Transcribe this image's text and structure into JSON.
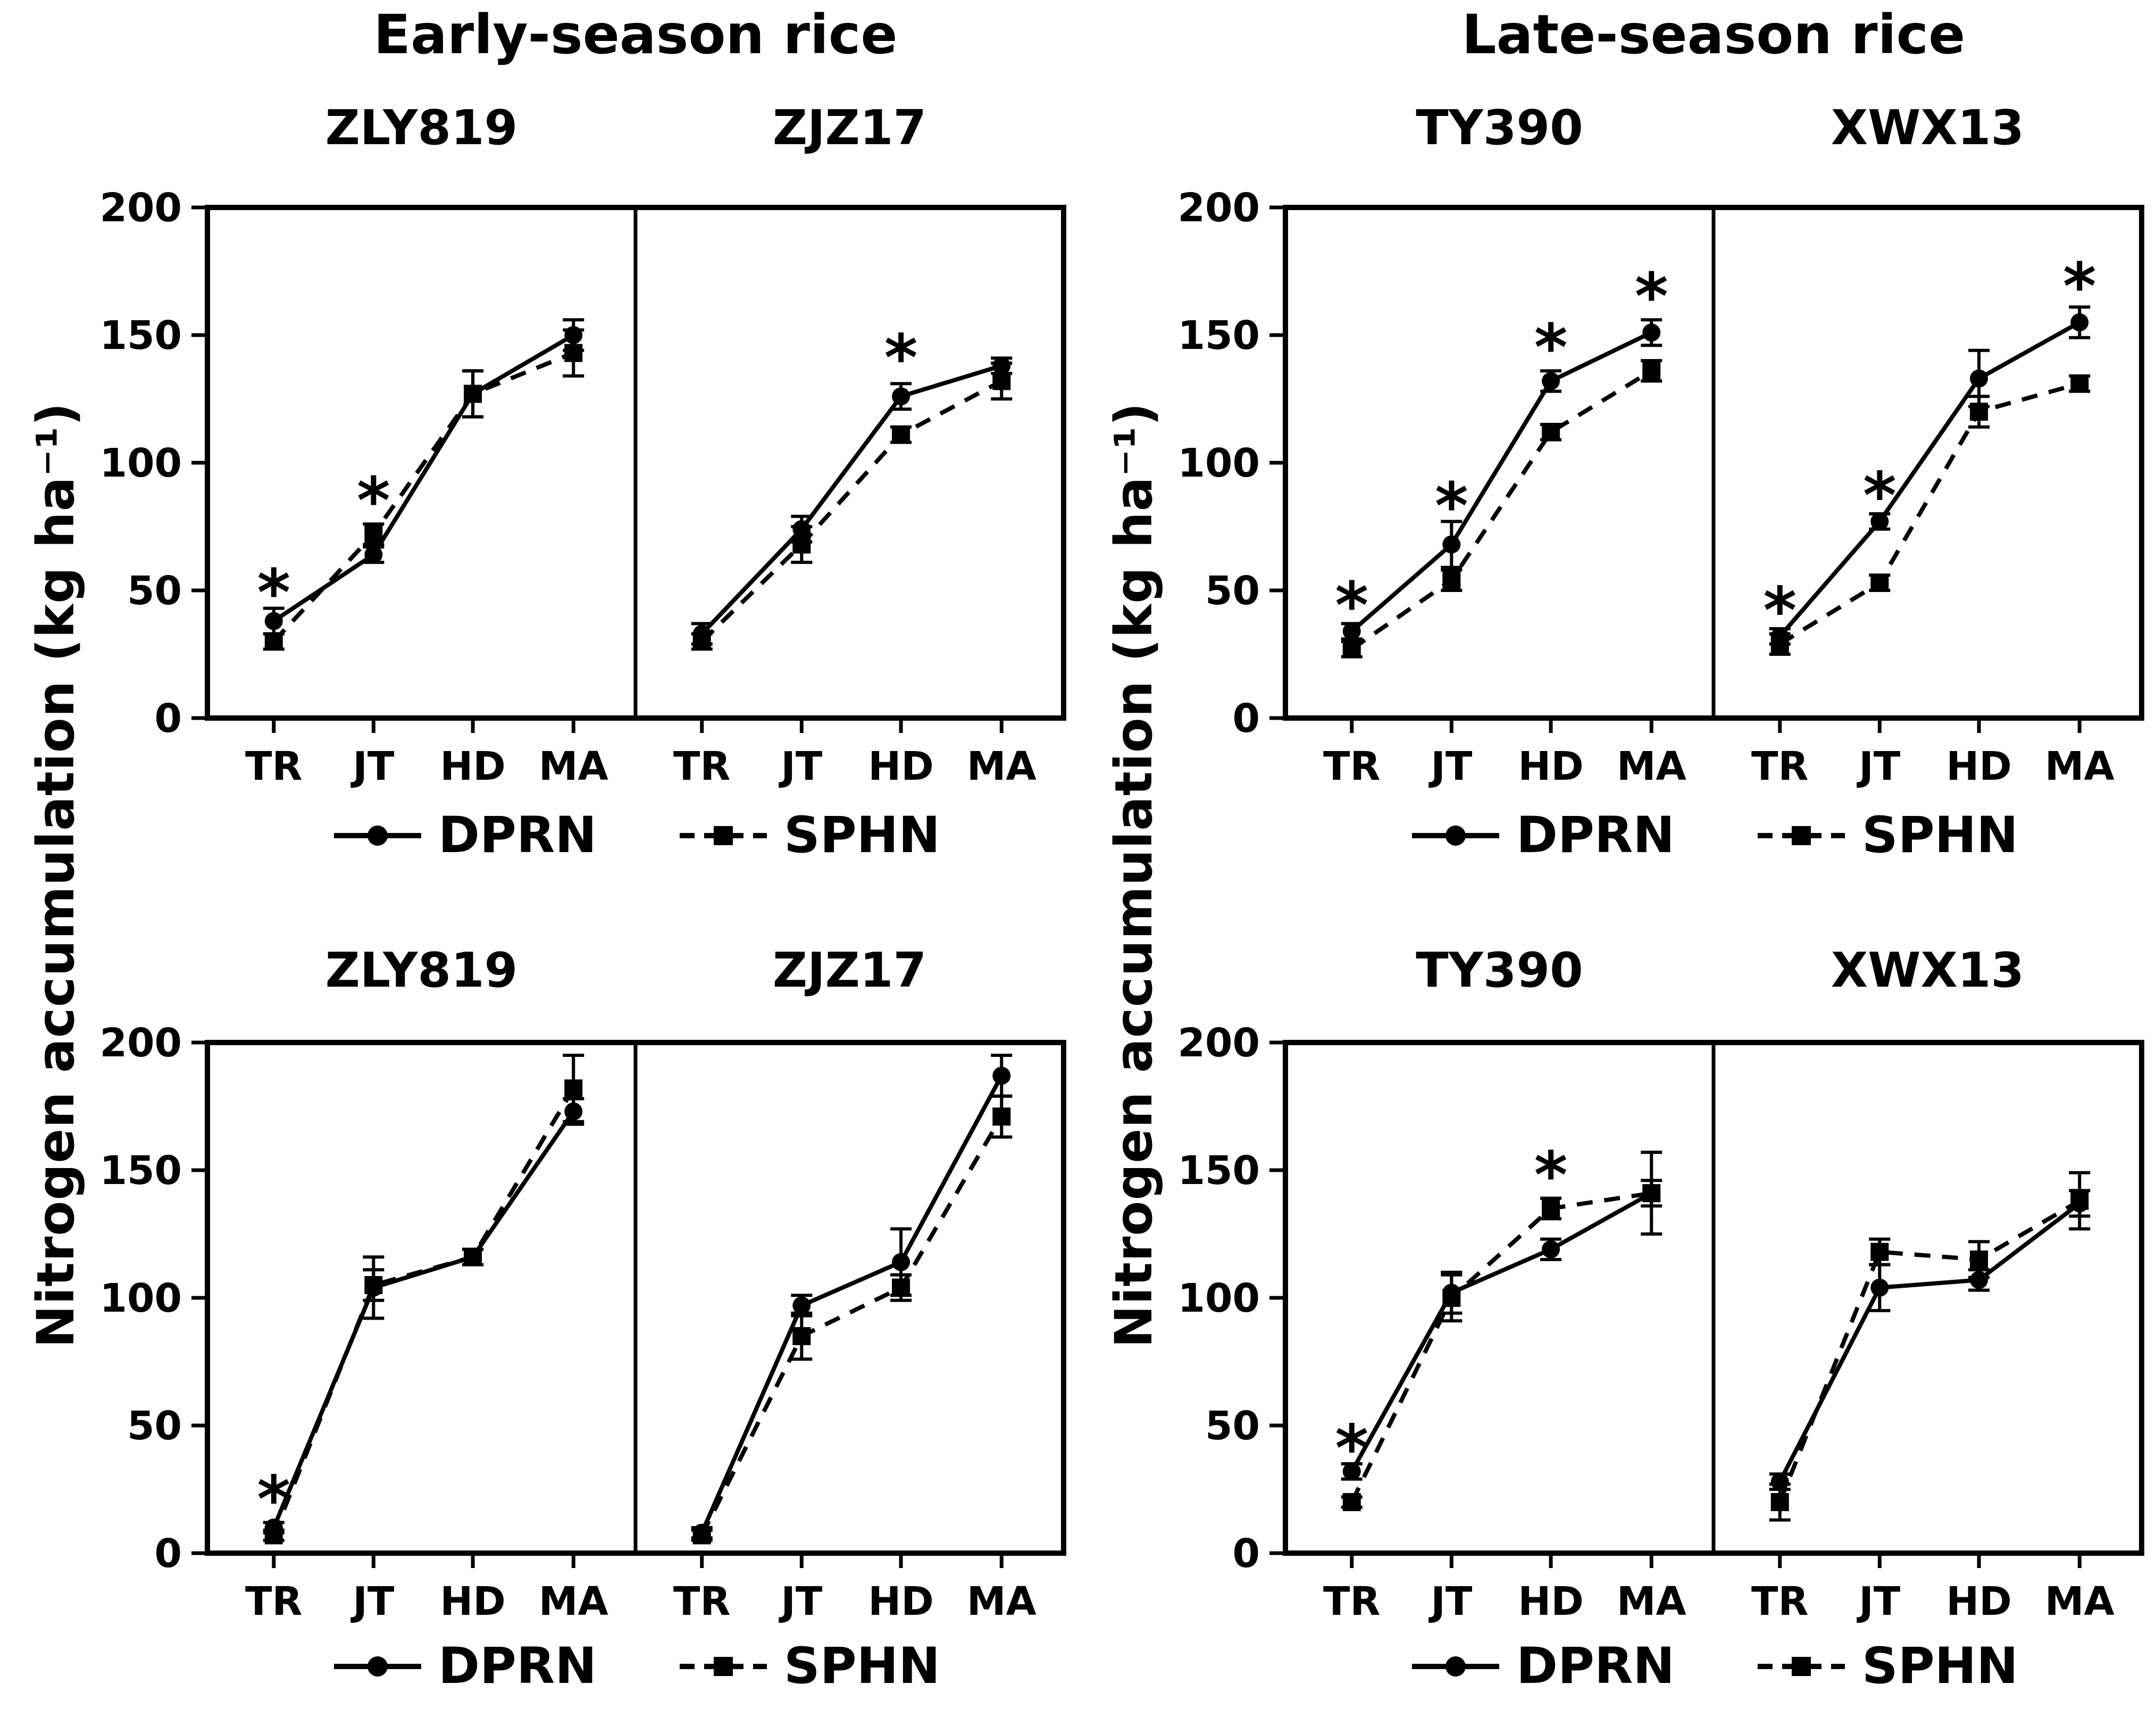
{
  "figure": {
    "ylabel": "Nitrogen accumulation (kg ha⁻¹)",
    "legend": {
      "dprn_label": "DPRN",
      "sphn_label": "SPHN"
    },
    "colors": {
      "foreground": "#000000",
      "background": "#ffffff"
    },
    "significance_symbol": "*"
  },
  "chart_data": [
    {
      "type": "line",
      "season_title": "Early-season rice",
      "position": "top-left",
      "ylim": [
        0,
        200
      ],
      "yticks": [
        0,
        50,
        100,
        150,
        200
      ],
      "categories": [
        "TR",
        "JT",
        "HD",
        "MA"
      ],
      "legend_entries": [
        "DPRN",
        "SPHN"
      ],
      "panels": [
        {
          "title": "ZLY819",
          "series": [
            {
              "name": "DPRN",
              "marker": "circle",
              "line": "solid",
              "values": [
                38,
                64,
                127,
                150
              ],
              "errors": [
                5,
                3,
                9,
                6
              ]
            },
            {
              "name": "SPHN",
              "marker": "square",
              "line": "dashed",
              "values": [
                30,
                72,
                127,
                143
              ],
              "errors": [
                3,
                4,
                9,
                9
              ]
            }
          ],
          "significance": [
            {
              "category": "TR",
              "at": 50
            },
            {
              "category": "JT",
              "at": 86
            }
          ]
        },
        {
          "title": "ZJZ17",
          "series": [
            {
              "name": "DPRN",
              "marker": "circle",
              "line": "solid",
              "values": [
                33,
                74,
                126,
                138
              ],
              "errors": [
                4,
                5,
                5,
                3
              ]
            },
            {
              "name": "SPHN",
              "marker": "square",
              "line": "dashed",
              "values": [
                30,
                68,
                111,
                132
              ],
              "errors": [
                3,
                7,
                3,
                7
              ]
            }
          ],
          "significance": [
            {
              "category": "HD",
              "at": 142
            }
          ]
        }
      ]
    },
    {
      "type": "line",
      "season_title": "Late-season rice",
      "position": "top-right",
      "ylim": [
        0,
        200
      ],
      "yticks": [
        0,
        50,
        100,
        150,
        200
      ],
      "categories": [
        "TR",
        "JT",
        "HD",
        "MA"
      ],
      "legend_entries": [
        "DPRN",
        "SPHN"
      ],
      "panels": [
        {
          "title": "TY390",
          "series": [
            {
              "name": "DPRN",
              "marker": "circle",
              "line": "solid",
              "values": [
                34,
                68,
                132,
                151
              ],
              "errors": [
                3,
                9,
                4,
                5
              ]
            },
            {
              "name": "SPHN",
              "marker": "square",
              "line": "dashed",
              "values": [
                27,
                54,
                112,
                136
              ],
              "errors": [
                3,
                4,
                3,
                4
              ]
            }
          ],
          "significance": [
            {
              "category": "TR",
              "at": 45
            },
            {
              "category": "JT",
              "at": 84
            },
            {
              "category": "HD",
              "at": 146
            },
            {
              "category": "MA",
              "at": 166
            }
          ]
        },
        {
          "title": "XWX13",
          "series": [
            {
              "name": "DPRN",
              "marker": "circle",
              "line": "solid",
              "values": [
                32,
                77,
                133,
                155
              ],
              "errors": [
                3,
                3,
                11,
                6
              ]
            },
            {
              "name": "SPHN",
              "marker": "square",
              "line": "dashed",
              "values": [
                29,
                53,
                120,
                131
              ],
              "errors": [
                4,
                3,
                6,
                3
              ]
            }
          ],
          "significance": [
            {
              "category": "TR",
              "at": 43
            },
            {
              "category": "JT",
              "at": 88
            },
            {
              "category": "MA",
              "at": 170
            }
          ]
        }
      ]
    },
    {
      "type": "line",
      "season_title": "",
      "position": "bottom-left",
      "ylim": [
        0,
        200
      ],
      "yticks": [
        0,
        50,
        100,
        150,
        200
      ],
      "categories": [
        "TR",
        "JT",
        "HD",
        "MA"
      ],
      "legend_entries": [
        "DPRN",
        "SPHN"
      ],
      "panels": [
        {
          "title": "ZLY819",
          "series": [
            {
              "name": "DPRN",
              "marker": "circle",
              "line": "solid",
              "values": [
                10,
                104,
                116,
                173
              ],
              "errors": [
                2,
                12,
                3,
                5
              ]
            },
            {
              "name": "SPHN",
              "marker": "square",
              "line": "dashed",
              "values": [
                7,
                105,
                116,
                182
              ],
              "errors": [
                2,
                6,
                3,
                13
              ]
            }
          ],
          "significance": [
            {
              "category": "TR",
              "at": 22
            }
          ]
        },
        {
          "title": "ZJZ17",
          "series": [
            {
              "name": "DPRN",
              "marker": "circle",
              "line": "solid",
              "values": [
                8,
                97,
                114,
                187
              ],
              "errors": [
                2,
                4,
                13,
                8
              ]
            },
            {
              "name": "SPHN",
              "marker": "square",
              "line": "dashed",
              "values": [
                7,
                85,
                104,
                171
              ],
              "errors": [
                2,
                9,
                5,
                8
              ]
            }
          ],
          "significance": []
        }
      ]
    },
    {
      "type": "line",
      "season_title": "",
      "position": "bottom-right",
      "ylim": [
        0,
        200
      ],
      "yticks": [
        0,
        50,
        100,
        150,
        200
      ],
      "categories": [
        "TR",
        "JT",
        "HD",
        "MA"
      ],
      "legend_entries": [
        "DPRN",
        "SPHN"
      ],
      "panels": [
        {
          "title": "TY390",
          "series": [
            {
              "name": "DPRN",
              "marker": "circle",
              "line": "solid",
              "values": [
                32,
                102,
                119,
                141
              ],
              "errors": [
                3,
                8,
                4,
                16
              ]
            },
            {
              "name": "SPHN",
              "marker": "square",
              "line": "dashed",
              "values": [
                20,
                100,
                135,
                141
              ],
              "errors": [
                2,
                9,
                4,
                5
              ]
            }
          ],
          "significance": [
            {
              "category": "TR",
              "at": 42
            },
            {
              "category": "HD",
              "at": 149
            }
          ]
        },
        {
          "title": "XWX13",
          "series": [
            {
              "name": "DPRN",
              "marker": "circle",
              "line": "solid",
              "values": [
                28,
                104,
                107,
                137
              ],
              "errors": [
                3,
                9,
                4,
                5
              ]
            },
            {
              "name": "SPHN",
              "marker": "square",
              "line": "dashed",
              "values": [
                20,
                118,
                115,
                138
              ],
              "errors": [
                7,
                5,
                7,
                11
              ]
            }
          ],
          "significance": []
        }
      ]
    }
  ]
}
